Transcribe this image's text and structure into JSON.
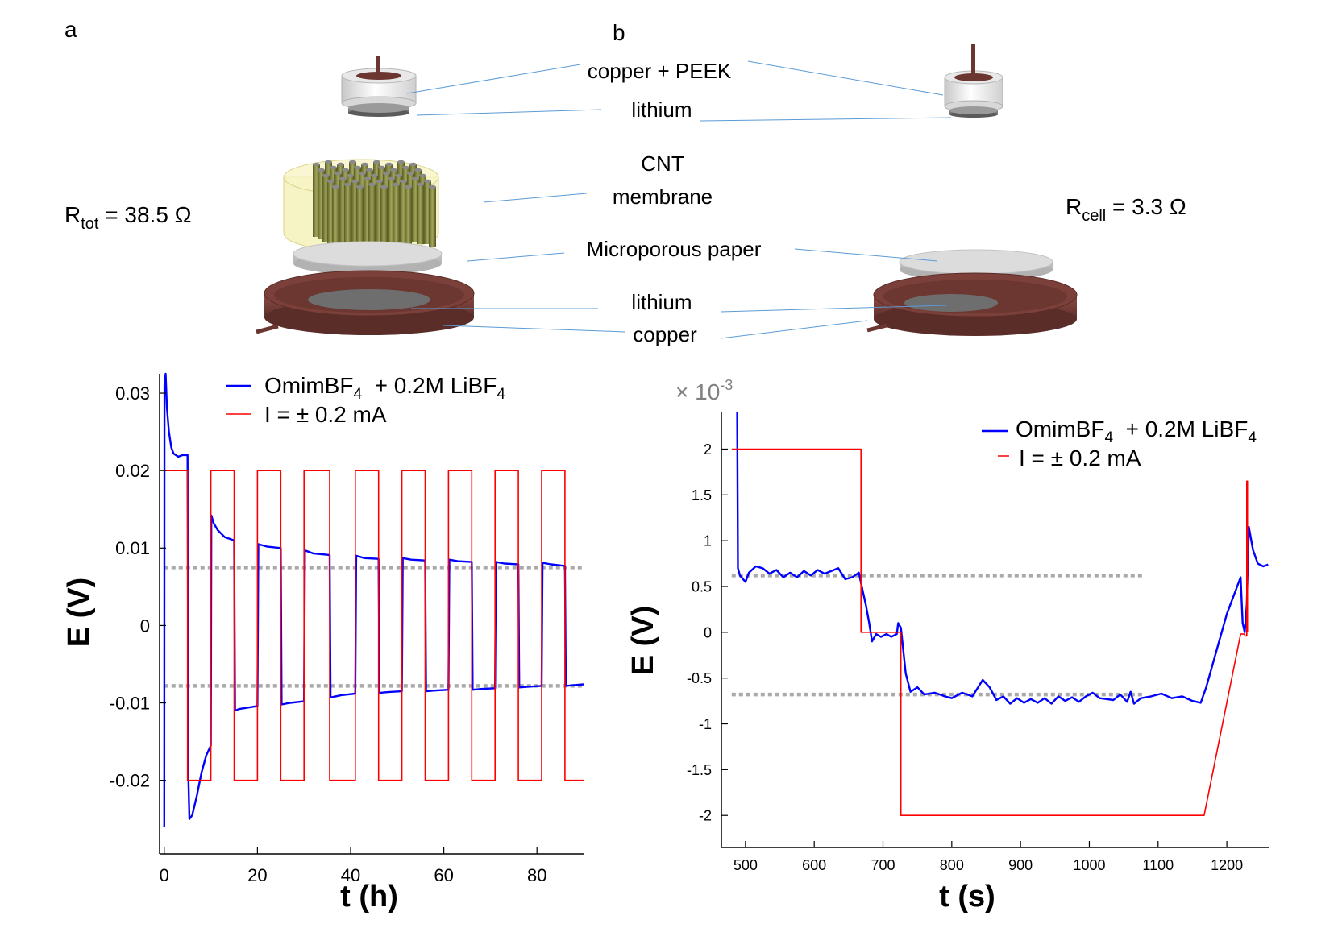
{
  "panels": {
    "a": "a",
    "b": "b"
  },
  "labels": {
    "copper_peek": "copper + PEEK",
    "lithium_top": "lithium",
    "cnt_line1": "CNT",
    "cnt_line2": "membrane",
    "paper": "Microporous paper",
    "lithium_bottom": "lithium",
    "copper": "copper"
  },
  "resistances": {
    "left": {
      "symbol": "R",
      "subscript": "tot",
      "value": " = 38.5 Ω"
    },
    "right": {
      "symbol": "R",
      "subscript": "cell",
      "value": " = 3.3 Ω"
    }
  },
  "colors": {
    "copper": "#7a3f3a",
    "lithium": "#6e6e6e",
    "paper": "#d9d9d9",
    "cnt_membrane": "#f3f0b0",
    "cnt_tube": "#7a7d3a",
    "voltage": "#0000ff",
    "current": "#ff0000",
    "guide": "#aaaaaa",
    "leader": "#5b9bd5"
  },
  "chart_data": [
    {
      "type": "line",
      "xlabel": "t (h)",
      "ylabel": "E (V)",
      "xlim": [
        -1,
        90
      ],
      "ylim": [
        -0.0295,
        0.0325
      ],
      "xticks": [
        0,
        20,
        40,
        60,
        80
      ],
      "yticks": [
        0.03,
        0.02,
        0.01,
        0,
        -0.01,
        -0.02
      ],
      "ytick_labels": [
        "0.03",
        "0.02",
        "0.01",
        "0",
        "-0.01",
        "-0.02"
      ],
      "legend": {
        "placement": "top-center",
        "voltage": {
          "main": "OmimBF",
          "sub1": "4",
          "mid": "  + 0.2M LiBF",
          "sub2": "4"
        },
        "current": "I = ± 0.2 mA"
      },
      "series": [
        {
          "role": "voltage",
          "points": [
            [
              0,
              -0.026
            ],
            [
              0.05,
              0.031
            ],
            [
              0.3,
              0.034
            ],
            [
              0.6,
              0.028
            ],
            [
              1,
              0.025
            ],
            [
              1.5,
              0.023
            ],
            [
              2,
              0.0222
            ],
            [
              3,
              0.0218
            ],
            [
              4,
              0.022
            ],
            [
              5,
              0.022
            ],
            [
              5.2,
              -0.02
            ],
            [
              5.4,
              -0.025
            ],
            [
              6,
              -0.0245
            ],
            [
              7,
              -0.022
            ],
            [
              8,
              -0.019
            ],
            [
              9,
              -0.0168
            ],
            [
              10,
              -0.0155
            ],
            [
              10.1,
              0.0142
            ],
            [
              10.6,
              0.0132
            ],
            [
              11.5,
              0.0123
            ],
            [
              13,
              0.0114
            ],
            [
              15,
              0.011
            ],
            [
              15.2,
              -0.011
            ],
            [
              16,
              -0.0108
            ],
            [
              18,
              -0.0106
            ],
            [
              20,
              -0.0104
            ],
            [
              20.2,
              0.0105
            ],
            [
              22,
              0.0102
            ],
            [
              25,
              0.01
            ],
            [
              25.2,
              -0.0102
            ],
            [
              27,
              -0.01
            ],
            [
              30,
              -0.0098
            ],
            [
              30.2,
              0.0097
            ],
            [
              32,
              0.0093
            ],
            [
              35.5,
              0.0091
            ],
            [
              35.7,
              -0.0093
            ],
            [
              38,
              -0.009
            ],
            [
              41,
              -0.0088
            ],
            [
              41.2,
              0.009
            ],
            [
              43,
              0.0087
            ],
            [
              46,
              0.0086
            ],
            [
              46.2,
              -0.0087
            ],
            [
              48,
              -0.0086
            ],
            [
              51,
              -0.0085
            ],
            [
              51.2,
              0.0087
            ],
            [
              53,
              0.0085
            ],
            [
              56,
              0.0084
            ],
            [
              56.2,
              -0.0085
            ],
            [
              58,
              -0.0084
            ],
            [
              61,
              -0.0083
            ],
            [
              61.2,
              0.0085
            ],
            [
              63,
              0.0083
            ],
            [
              66,
              0.0082
            ],
            [
              66.2,
              -0.0083
            ],
            [
              68,
              -0.0082
            ],
            [
              71,
              -0.0081
            ],
            [
              71.2,
              0.0082
            ],
            [
              73,
              0.008
            ],
            [
              76,
              0.0079
            ],
            [
              76.2,
              -0.008
            ],
            [
              78,
              -0.0079
            ],
            [
              81,
              -0.0078
            ],
            [
              81.2,
              0.0081
            ],
            [
              83,
              0.0079
            ],
            [
              86,
              0.0077
            ],
            [
              86.2,
              -0.0078
            ],
            [
              88,
              -0.0077
            ],
            [
              90,
              -0.0076
            ]
          ]
        },
        {
          "role": "current",
          "points": [
            [
              0,
              0.02
            ],
            [
              5,
              0.02
            ],
            [
              5,
              -0.02
            ],
            [
              10,
              -0.02
            ],
            [
              10,
              0.02
            ],
            [
              15,
              0.02
            ],
            [
              15,
              -0.02
            ],
            [
              20,
              -0.02
            ],
            [
              20,
              0.02
            ],
            [
              25,
              0.02
            ],
            [
              25,
              -0.02
            ],
            [
              30,
              -0.02
            ],
            [
              30,
              0.02
            ],
            [
              35.5,
              0.02
            ],
            [
              35.5,
              -0.02
            ],
            [
              41,
              -0.02
            ],
            [
              41,
              0.02
            ],
            [
              46,
              0.02
            ],
            [
              46,
              -0.02
            ],
            [
              51,
              -0.02
            ],
            [
              51,
              0.02
            ],
            [
              56,
              0.02
            ],
            [
              56,
              -0.02
            ],
            [
              61,
              -0.02
            ],
            [
              61,
              0.02
            ],
            [
              66,
              0.02
            ],
            [
              66,
              -0.02
            ],
            [
              71,
              -0.02
            ],
            [
              71,
              0.02
            ],
            [
              76,
              0.02
            ],
            [
              76,
              -0.02
            ],
            [
              81,
              -0.02
            ],
            [
              81,
              0.02
            ],
            [
              86,
              0.02
            ],
            [
              86,
              -0.02
            ],
            [
              90,
              -0.02
            ]
          ]
        }
      ],
      "guides": [
        {
          "y": 0.0075,
          "x": [
            0,
            90
          ]
        },
        {
          "y": -0.0078,
          "x": [
            0,
            90
          ]
        }
      ]
    },
    {
      "type": "line",
      "xlabel": "t (s)",
      "ylabel": "E (V)",
      "multiplier_base": "× 10",
      "multiplier_exp": "-3",
      "xlim": [
        465,
        1262
      ],
      "ylim": [
        -2.35,
        2.4
      ],
      "xticks": [
        500,
        600,
        700,
        800,
        900,
        1000,
        1100,
        1200
      ],
      "yticks": [
        2,
        1.5,
        1,
        0.5,
        0,
        -0.5,
        -1,
        -1.5,
        -2
      ],
      "ytick_labels": [
        "2",
        "1.5",
        "1",
        "0.5",
        "0",
        "-0.5",
        "-1",
        "-1.5",
        "-2"
      ],
      "legend": {
        "placement": "top-right",
        "voltage": {
          "main": "OmimBF",
          "sub1": "4",
          "mid": "  + 0.2M LiBF",
          "sub2": "4"
        },
        "current": "I = ± 0.2 mA"
      },
      "series": [
        {
          "role": "voltage",
          "points": [
            [
              488,
              2.4
            ],
            [
              489,
              0.7
            ],
            [
              492,
              0.62
            ],
            [
              500,
              0.55
            ],
            [
              505,
              0.65
            ],
            [
              515,
              0.72
            ],
            [
              525,
              0.7
            ],
            [
              535,
              0.64
            ],
            [
              545,
              0.68
            ],
            [
              555,
              0.6
            ],
            [
              565,
              0.65
            ],
            [
              575,
              0.6
            ],
            [
              585,
              0.67
            ],
            [
              595,
              0.62
            ],
            [
              605,
              0.68
            ],
            [
              615,
              0.64
            ],
            [
              625,
              0.67
            ],
            [
              635,
              0.7
            ],
            [
              645,
              0.58
            ],
            [
              655,
              0.6
            ],
            [
              665,
              0.65
            ],
            [
              669,
              0.5
            ],
            [
              675,
              0.3
            ],
            [
              680,
              0.1
            ],
            [
              684,
              -0.1
            ],
            [
              690,
              -0.02
            ],
            [
              697,
              -0.05
            ],
            [
              705,
              -0.02
            ],
            [
              712,
              -0.05
            ],
            [
              720,
              -0.02
            ],
            [
              722,
              0.1
            ],
            [
              726,
              0.05
            ],
            [
              733,
              -0.45
            ],
            [
              740,
              -0.65
            ],
            [
              750,
              -0.6
            ],
            [
              760,
              -0.68
            ],
            [
              775,
              -0.66
            ],
            [
              790,
              -0.7
            ],
            [
              800,
              -0.72
            ],
            [
              815,
              -0.66
            ],
            [
              830,
              -0.7
            ],
            [
              845,
              -0.52
            ],
            [
              855,
              -0.6
            ],
            [
              865,
              -0.74
            ],
            [
              875,
              -0.7
            ],
            [
              885,
              -0.78
            ],
            [
              895,
              -0.72
            ],
            [
              905,
              -0.77
            ],
            [
              915,
              -0.73
            ],
            [
              925,
              -0.77
            ],
            [
              935,
              -0.72
            ],
            [
              945,
              -0.78
            ],
            [
              955,
              -0.7
            ],
            [
              965,
              -0.75
            ],
            [
              975,
              -0.71
            ],
            [
              985,
              -0.76
            ],
            [
              995,
              -0.7
            ],
            [
              1005,
              -0.66
            ],
            [
              1015,
              -0.72
            ],
            [
              1025,
              -0.73
            ],
            [
              1035,
              -0.74
            ],
            [
              1045,
              -0.68
            ],
            [
              1055,
              -0.76
            ],
            [
              1060,
              -0.65
            ],
            [
              1065,
              -0.78
            ],
            [
              1075,
              -0.72
            ],
            [
              1090,
              -0.7
            ],
            [
              1105,
              -0.67
            ],
            [
              1120,
              -0.72
            ],
            [
              1135,
              -0.7
            ],
            [
              1150,
              -0.75
            ],
            [
              1162,
              -0.77
            ],
            [
              1170,
              -0.6
            ],
            [
              1185,
              -0.2
            ],
            [
              1200,
              0.2
            ],
            [
              1215,
              0.5
            ],
            [
              1220,
              0.6
            ],
            [
              1223,
              0.1
            ],
            [
              1226,
              0.0
            ],
            [
              1229,
              0.3
            ],
            [
              1232,
              1.15
            ],
            [
              1238,
              0.9
            ],
            [
              1245,
              0.75
            ],
            [
              1253,
              0.72
            ],
            [
              1260,
              0.74
            ]
          ]
        },
        {
          "role": "current",
          "points": [
            [
              480,
              2.0
            ],
            [
              668,
              2.0
            ],
            [
              668,
              0.0
            ],
            [
              726,
              0.0
            ],
            [
              726,
              -2.0
            ],
            [
              1167,
              -2.0
            ],
            [
              1220,
              -0.02
            ],
            [
              1226,
              -0.02
            ],
            [
              1226,
              -0.04
            ],
            [
              1229,
              -0.04
            ],
            [
              1229,
              1.65
            ],
            [
              1230,
              1.65
            ],
            [
              1230,
              0.0
            ]
          ]
        }
      ],
      "guides": [
        {
          "y": 0.62,
          "x": [
            480,
            1078
          ]
        },
        {
          "y": -0.68,
          "x": [
            480,
            1078
          ]
        }
      ]
    }
  ]
}
